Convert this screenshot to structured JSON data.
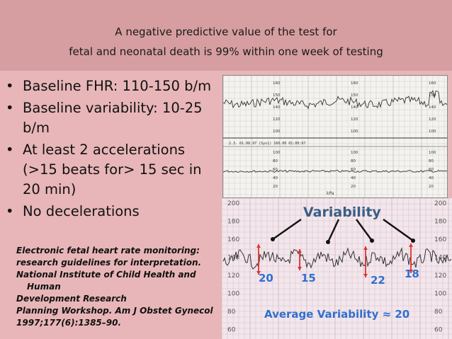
{
  "title": {
    "line1": "A negative predictive value of the test for",
    "line2": "fetal and neonatal death is 99% within one week of testing"
  },
  "bullets": [
    {
      "line1": "Baseline FHR: 110-150 b/m",
      "line2": ""
    },
    {
      "line1": "Baseline variability: 10-25",
      "line2": "b/m"
    },
    {
      "line1": "At least 2 accelerations",
      "line2": "(>15 beats for> 15 sec in",
      "line3": "20 min)"
    },
    {
      "line1": "No decelerations",
      "line2": ""
    }
  ],
  "reference": {
    "line1": "Electronic fetal heart rate monitoring:",
    "line2": "research guidelines for interpretation.",
    "line3": "National Institute of Child Health and Human",
    "line4": "Development Research",
    "line5": "Planning Workshop. Am J Obstet Gynecol",
    "line6": "1997;177(6):1385–90."
  },
  "strip": {
    "upper_ticks": [
      "160",
      "150",
      "140",
      "120",
      "100"
    ],
    "lower_ticks": [
      "100",
      "80",
      "60",
      "40",
      "20"
    ],
    "axis_unit": "kPa",
    "header_text": "2.3.  01.08.97 (Sys1)  160.00  01:00:97"
  },
  "variability_chart": {
    "title": "Variability",
    "footer": "Average Variability ≈ 20",
    "y_ticks": [
      "200",
      "180",
      "160",
      "140",
      "120",
      "100",
      "80",
      "60"
    ],
    "annotations": [
      "20",
      "15",
      "22",
      "18"
    ],
    "colors": {
      "title": "#3a5e86",
      "labels": "#2f6fd1",
      "arrows": "#d33",
      "trace": "#333"
    }
  }
}
